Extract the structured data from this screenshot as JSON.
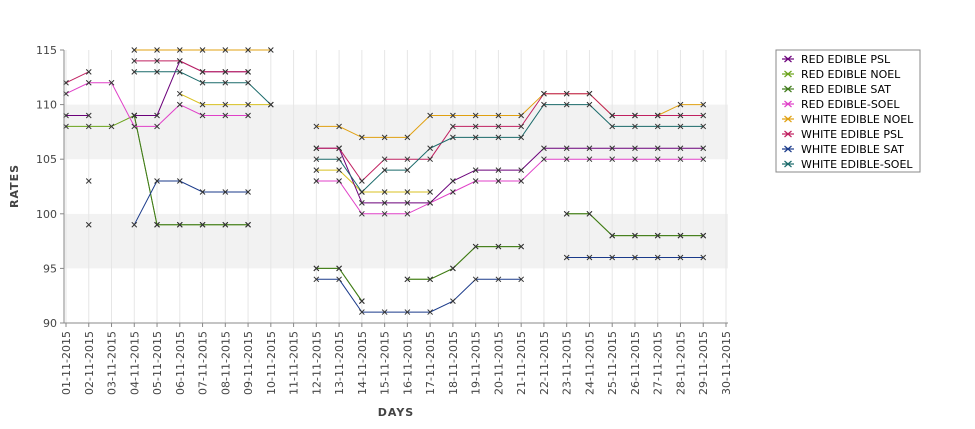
{
  "chart_data": {
    "type": "line",
    "title": "",
    "xlabel": "DAYS",
    "ylabel": "RATES",
    "ylim": [
      90,
      115
    ],
    "yticks": [
      90,
      95,
      100,
      105,
      110,
      115
    ],
    "grid": "alternating horizontal bands",
    "legend_position": "right",
    "x": [
      "01-11-2015",
      "02-11-2015",
      "03-11-2015",
      "04-11-2015",
      "05-11-2015",
      "06-11-2015",
      "07-11-2015",
      "08-11-2015",
      "09-11-2015",
      "10-11-2015",
      "11-11-2015",
      "12-11-2015",
      "13-11-2015",
      "14-11-2015",
      "15-11-2015",
      "16-11-2015",
      "17-11-2015",
      "18-11-2015",
      "19-11-2015",
      "20-11-2015",
      "21-11-2015",
      "22-11-2015",
      "23-11-2015",
      "24-11-2015",
      "25-11-2015",
      "26-11-2015",
      "27-11-2015",
      "28-11-2015",
      "29-11-2015",
      "30-11-2015"
    ],
    "series": [
      {
        "name": "RED EDIBLE  PSL",
        "color": "#6b007a",
        "values": [
          109,
          109,
          null,
          109,
          109,
          114,
          113,
          113,
          113,
          null,
          null,
          106,
          106,
          101,
          101,
          101,
          101,
          103,
          104,
          104,
          104,
          106,
          106,
          106,
          106,
          106,
          106,
          106,
          106,
          null
        ]
      },
      {
        "name": "RED EDIBLE NOEL",
        "color": "#6aa31a",
        "values": [
          108,
          108,
          108,
          109,
          99,
          99,
          99,
          99,
          99,
          null,
          null,
          95,
          95,
          92,
          null,
          94,
          94,
          95,
          97,
          97,
          97,
          null,
          100,
          100,
          98,
          98,
          98,
          98,
          98,
          null
        ]
      },
      {
        "name": "RED EDIBLE SAT",
        "color": "#3f7a1a",
        "values": [
          null,
          103,
          null,
          109,
          99,
          99,
          99,
          99,
          99,
          null,
          null,
          95,
          95,
          92,
          null,
          94,
          94,
          95,
          97,
          97,
          97,
          null,
          100,
          100,
          98,
          98,
          98,
          98,
          98,
          null
        ]
      },
      {
        "name": "RED EDIBLE-SOEL",
        "color": "#e040c8",
        "values": [
          111,
          112,
          112,
          108,
          108,
          110,
          109,
          109,
          109,
          null,
          null,
          103,
          103,
          100,
          100,
          100,
          101,
          102,
          103,
          103,
          103,
          105,
          105,
          105,
          105,
          105,
          105,
          105,
          105,
          null
        ]
      },
      {
        "name": "WHITE EDIBLE NOEL",
        "color": "#e0a010",
        "values": [
          null,
          null,
          null,
          115,
          115,
          115,
          115,
          115,
          115,
          115,
          null,
          108,
          108,
          107,
          107,
          107,
          109,
          109,
          109,
          109,
          109,
          111,
          111,
          111,
          109,
          109,
          109,
          110,
          110,
          null
        ]
      },
      {
        "name": "WHITE EDIBLE PSL",
        "color": "#c02060",
        "values": [
          112,
          113,
          null,
          114,
          114,
          114,
          113,
          113,
          113,
          null,
          null,
          106,
          106,
          103,
          105,
          105,
          105,
          108,
          108,
          108,
          108,
          111,
          111,
          111,
          109,
          109,
          109,
          109,
          109,
          null
        ]
      },
      {
        "name": "WHITE EDIBLE SAT",
        "color": "#1a3a8a",
        "values": [
          null,
          99,
          null,
          99,
          103,
          103,
          102,
          102,
          102,
          null,
          null,
          94,
          94,
          91,
          91,
          91,
          91,
          92,
          94,
          94,
          94,
          null,
          96,
          96,
          96,
          96,
          96,
          96,
          96,
          null
        ]
      },
      {
        "name": "WHITE EDIBLE-SOEL",
        "color": "#1a6a6a",
        "values": [
          null,
          null,
          null,
          113,
          113,
          113,
          112,
          112,
          112,
          110,
          null,
          105,
          105,
          102,
          104,
          104,
          106,
          107,
          107,
          107,
          107,
          110,
          110,
          110,
          108,
          108,
          108,
          108,
          108,
          null
        ]
      }
    ]
  },
  "extra_labels": {
    "yellow_series_a": [
      null,
      null,
      null,
      null,
      null,
      111,
      110,
      110,
      110,
      110,
      null,
      104,
      104,
      102,
      102,
      102,
      102,
      null,
      null,
      null,
      null,
      null,
      null,
      null,
      null,
      null,
      null,
      null,
      null,
      null
    ]
  }
}
